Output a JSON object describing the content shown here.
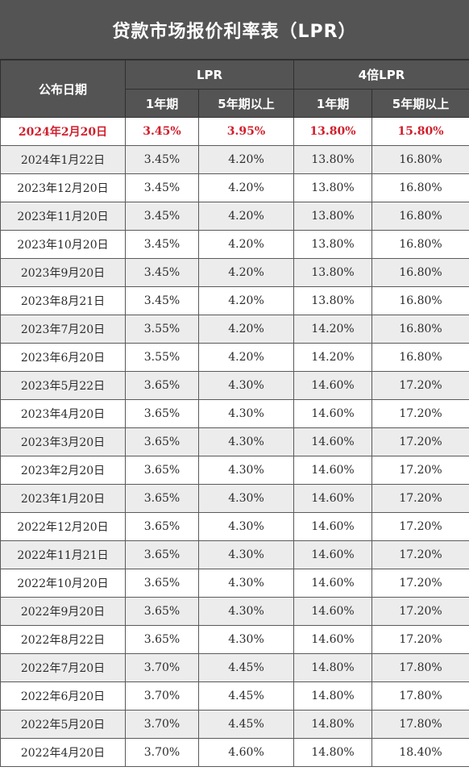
{
  "title": "贷款市场报价利率表（LPR）",
  "headers": {
    "date": "公布日期",
    "group_lpr": "LPR",
    "group_4x": "4倍LPR",
    "sub": [
      "1年期",
      "5年期以上",
      "1年期",
      "5年期以上"
    ]
  },
  "colors": {
    "header_bg": "#545454",
    "highlight": "#d01f2c",
    "alt_row": "#ececec"
  },
  "rows": [
    {
      "date": "2024年2月20日",
      "lpr1": "3.45%",
      "lpr5": "3.95%",
      "x4_1": "13.80%",
      "x4_5": "15.80%"
    },
    {
      "date": "2024年1月22日",
      "lpr1": "3.45%",
      "lpr5": "4.20%",
      "x4_1": "13.80%",
      "x4_5": "16.80%"
    },
    {
      "date": "2023年12月20日",
      "lpr1": "3.45%",
      "lpr5": "4.20%",
      "x4_1": "13.80%",
      "x4_5": "16.80%"
    },
    {
      "date": "2023年11月20日",
      "lpr1": "3.45%",
      "lpr5": "4.20%",
      "x4_1": "13.80%",
      "x4_5": "16.80%"
    },
    {
      "date": "2023年10月20日",
      "lpr1": "3.45%",
      "lpr5": "4.20%",
      "x4_1": "13.80%",
      "x4_5": "16.80%"
    },
    {
      "date": "2023年9月20日",
      "lpr1": "3.45%",
      "lpr5": "4.20%",
      "x4_1": "13.80%",
      "x4_5": "16.80%"
    },
    {
      "date": "2023年8月21日",
      "lpr1": "3.45%",
      "lpr5": "4.20%",
      "x4_1": "13.80%",
      "x4_5": "16.80%"
    },
    {
      "date": "2023年7月20日",
      "lpr1": "3.55%",
      "lpr5": "4.20%",
      "x4_1": "14.20%",
      "x4_5": "16.80%"
    },
    {
      "date": "2023年6月20日",
      "lpr1": "3.55%",
      "lpr5": "4.20%",
      "x4_1": "14.20%",
      "x4_5": "16.80%"
    },
    {
      "date": "2023年5月22日",
      "lpr1": "3.65%",
      "lpr5": "4.30%",
      "x4_1": "14.60%",
      "x4_5": "17.20%"
    },
    {
      "date": "2023年4月20日",
      "lpr1": "3.65%",
      "lpr5": "4.30%",
      "x4_1": "14.60%",
      "x4_5": "17.20%"
    },
    {
      "date": "2023年3月20日",
      "lpr1": "3.65%",
      "lpr5": "4.30%",
      "x4_1": "14.60%",
      "x4_5": "17.20%"
    },
    {
      "date": "2023年2月20日",
      "lpr1": "3.65%",
      "lpr5": "4.30%",
      "x4_1": "14.60%",
      "x4_5": "17.20%"
    },
    {
      "date": "2023年1月20日",
      "lpr1": "3.65%",
      "lpr5": "4.30%",
      "x4_1": "14.60%",
      "x4_5": "17.20%"
    },
    {
      "date": "2022年12月20日",
      "lpr1": "3.65%",
      "lpr5": "4.30%",
      "x4_1": "14.60%",
      "x4_5": "17.20%"
    },
    {
      "date": "2022年11月21日",
      "lpr1": "3.65%",
      "lpr5": "4.30%",
      "x4_1": "14.60%",
      "x4_5": "17.20%"
    },
    {
      "date": "2022年10月20日",
      "lpr1": "3.65%",
      "lpr5": "4.30%",
      "x4_1": "14.60%",
      "x4_5": "17.20%"
    },
    {
      "date": "2022年9月20日",
      "lpr1": "3.65%",
      "lpr5": "4.30%",
      "x4_1": "14.60%",
      "x4_5": "17.20%"
    },
    {
      "date": "2022年8月22日",
      "lpr1": "3.65%",
      "lpr5": "4.30%",
      "x4_1": "14.60%",
      "x4_5": "17.20%"
    },
    {
      "date": "2022年7月20日",
      "lpr1": "3.70%",
      "lpr5": "4.45%",
      "x4_1": "14.80%",
      "x4_5": "17.80%"
    },
    {
      "date": "2022年6月20日",
      "lpr1": "3.70%",
      "lpr5": "4.45%",
      "x4_1": "14.80%",
      "x4_5": "17.80%"
    },
    {
      "date": "2022年5月20日",
      "lpr1": "3.70%",
      "lpr5": "4.45%",
      "x4_1": "14.80%",
      "x4_5": "17.80%"
    },
    {
      "date": "2022年4月20日",
      "lpr1": "3.70%",
      "lpr5": "4.60%",
      "x4_1": "14.80%",
      "x4_5": "18.40%"
    }
  ]
}
